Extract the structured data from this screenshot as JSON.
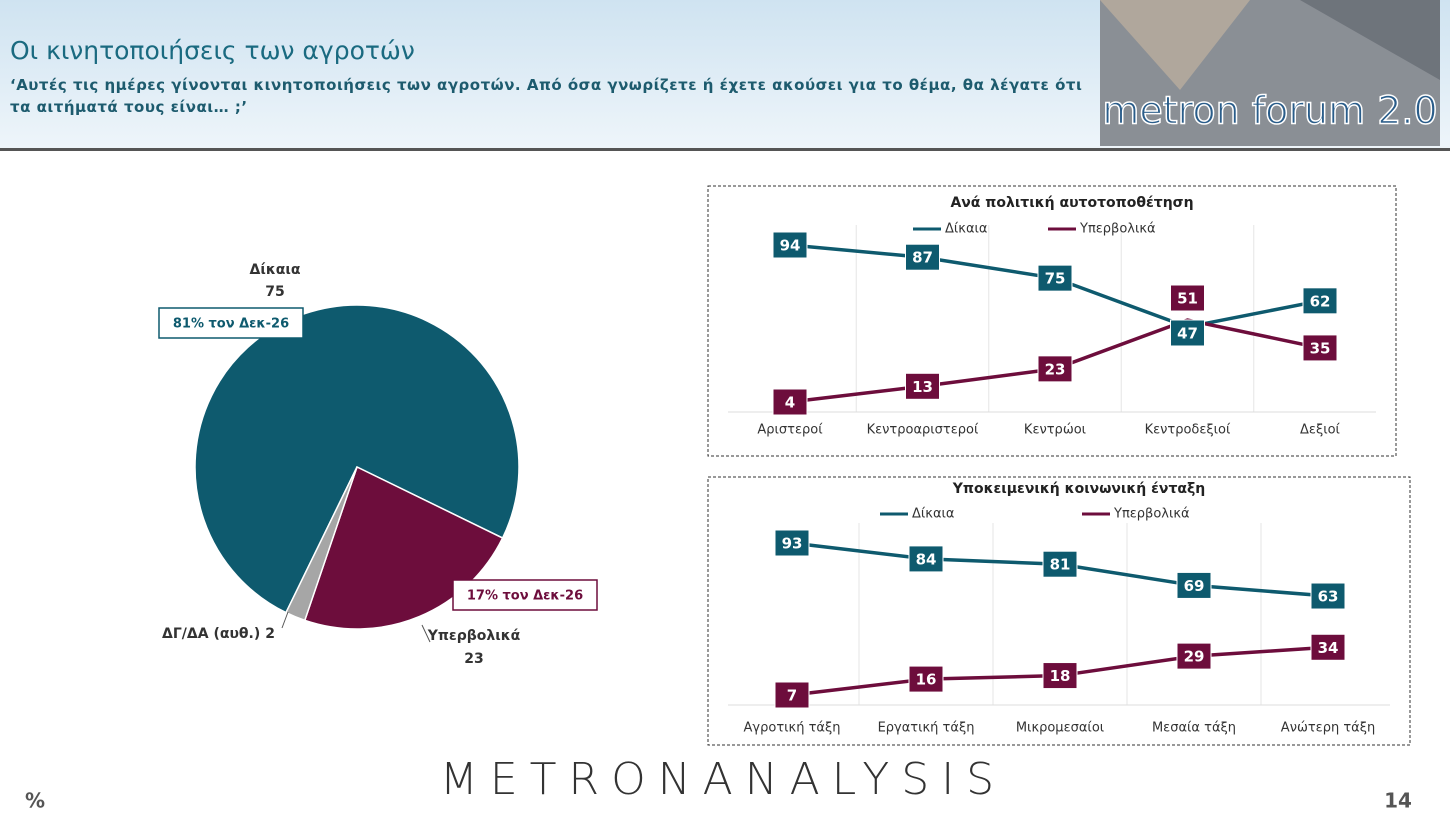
{
  "header": {
    "title": "Οι κινητοποιήσεις των αγροτών",
    "subtitle": "‘Αυτές τις ημέρες γίνονται κινητοποιήσεις των αγροτών. Από όσα γνωρίζετε ή έχετε ακούσει για το θέμα, θα λέγατε ότι τα αιτήματά τους είναι… ;’"
  },
  "logo": "metron forum 2.0",
  "footer": {
    "brand": "METRONANALYSIS",
    "unit": "%",
    "page": "14"
  },
  "chart_data": [
    {
      "type": "pie",
      "categories": [
        "Δίκαια",
        "Υπερβολικά",
        "ΔΓ/ΔΑ (αυθ.)"
      ],
      "values": [
        75,
        23,
        2
      ],
      "colors": [
        "#0e5a6e",
        "#6d0d3c",
        "#a6a6a6"
      ],
      "annotations": [
        "81% τον Δεκ-26",
        "17% τον Δεκ-26"
      ]
    },
    {
      "type": "line",
      "title": "Ανά πολιτική αυτοτοποθέτηση",
      "categories": [
        "Αριστεροί",
        "Κεντροαριστεροί",
        "Κεντρώοι",
        "Κεντροδεξιοί",
        "Δεξιοί"
      ],
      "series": [
        {
          "name": "Δίκαια",
          "color": "#0e5a6e",
          "values": [
            94,
            87,
            75,
            47,
            62
          ]
        },
        {
          "name": "Υπερβολικά",
          "color": "#6d0d3c",
          "values": [
            4,
            13,
            23,
            51,
            35
          ]
        }
      ]
    },
    {
      "type": "line",
      "title": "Υποκειμενική κοινωνική ένταξη",
      "categories": [
        "Αγροτική τάξη",
        "Εργατική τάξη",
        "Μικρομεσαίοι",
        "Μεσαία τάξη",
        "Ανώτερη τάξη"
      ],
      "series": [
        {
          "name": "Δίκαια",
          "color": "#0e5a6e",
          "values": [
            93,
            84,
            81,
            69,
            63
          ]
        },
        {
          "name": "Υπερβολικά",
          "color": "#6d0d3c",
          "values": [
            7,
            16,
            18,
            29,
            34
          ]
        }
      ]
    }
  ]
}
